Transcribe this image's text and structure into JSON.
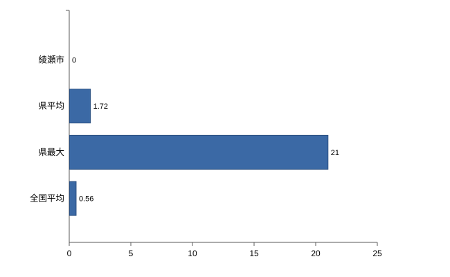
{
  "chart_data": {
    "type": "bar",
    "orientation": "horizontal",
    "title": "",
    "xlabel": "",
    "ylabel": "",
    "categories": [
      "綾瀬市",
      "県平均",
      "県最大",
      "全国平均"
    ],
    "values": [
      0,
      1.72,
      21,
      0.56
    ],
    "value_labels": [
      "0",
      "1.72",
      "21",
      "0.56"
    ],
    "xlim": [
      0,
      25
    ],
    "x_ticks": [
      0,
      5,
      10,
      15,
      20,
      25
    ],
    "x_tick_labels": [
      "0",
      "5",
      "10",
      "15",
      "20",
      "25"
    ],
    "grid": false,
    "legend": "none",
    "bar_color": "#3b69a5",
    "bar_border_color": "#2a4f80",
    "axis_color": "#595959",
    "text_color": "#000000"
  }
}
